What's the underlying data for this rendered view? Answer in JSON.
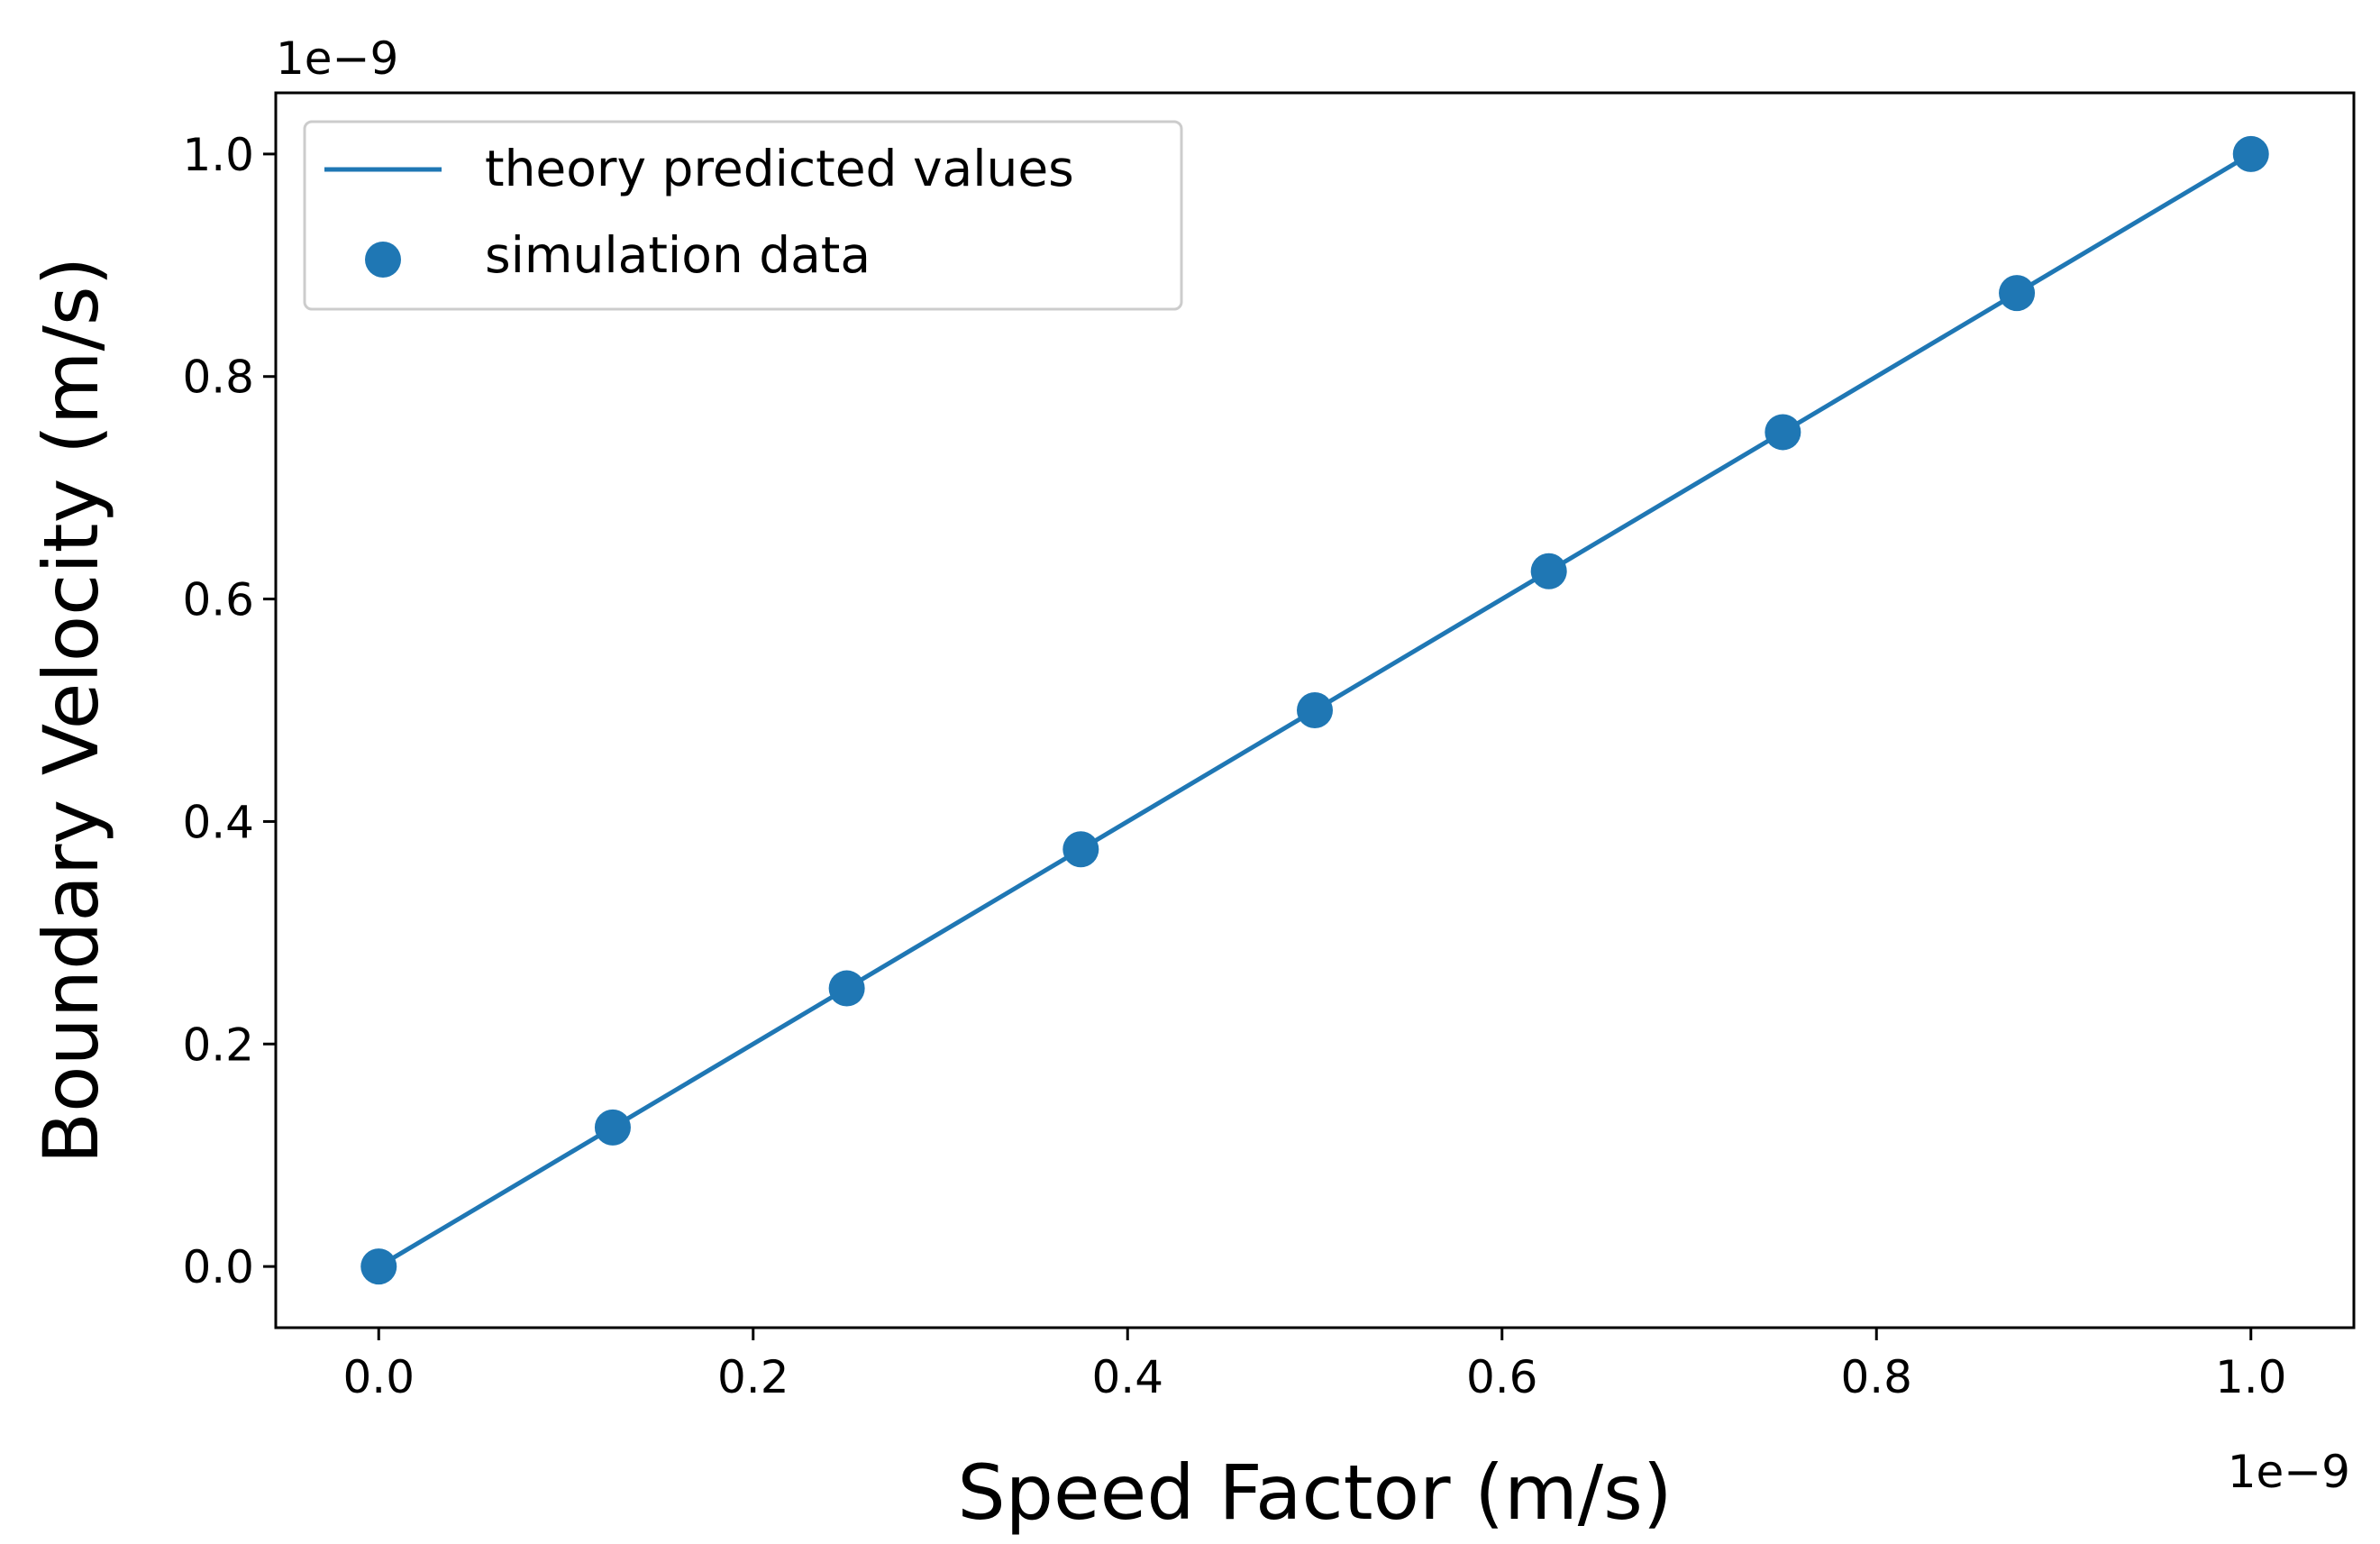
{
  "chart_data": {
    "type": "line",
    "xlabel": "Speed Factor (m/s)",
    "ylabel": "Boundary Velocity (m/s)",
    "x_offset_text": "1e−9",
    "y_offset_text": "1e−9",
    "xlim": [
      -0.055,
      1.055
    ],
    "ylim": [
      -0.055,
      1.055
    ],
    "x_ticks": [
      0.0,
      0.2,
      0.4,
      0.6,
      0.8,
      1.0
    ],
    "x_tick_labels": [
      "0.0",
      "0.2",
      "0.4",
      "0.6",
      "0.8",
      "1.0"
    ],
    "y_ticks": [
      0.0,
      0.2,
      0.4,
      0.6,
      0.8,
      1.0
    ],
    "y_tick_labels": [
      "0.0",
      "0.2",
      "0.4",
      "0.6",
      "0.8",
      "1.0"
    ],
    "grid": false,
    "legend_position": "top-left",
    "series": [
      {
        "name": "theory predicted values",
        "kind": "line",
        "color": "#1f77b4",
        "x": [
          0.0,
          1.0
        ],
        "y": [
          0.0,
          1.0
        ]
      },
      {
        "name": "simulation data",
        "kind": "scatter",
        "color": "#1f77b4",
        "x": [
          0.0,
          0.125,
          0.25,
          0.375,
          0.5,
          0.625,
          0.75,
          0.875,
          1.0
        ],
        "y": [
          0.0,
          0.125,
          0.25,
          0.375,
          0.5,
          0.625,
          0.75,
          0.875,
          1.0
        ]
      }
    ]
  }
}
